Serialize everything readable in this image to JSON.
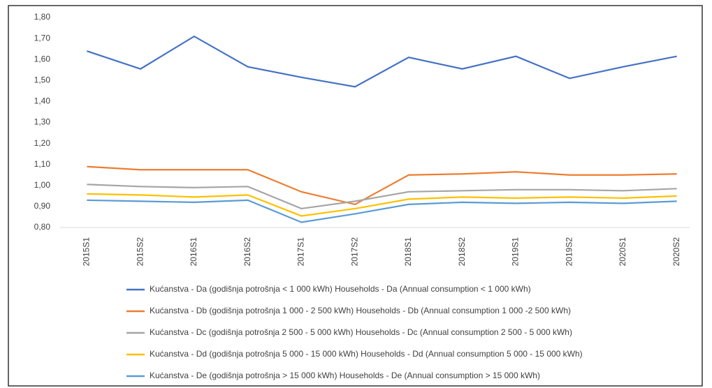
{
  "chart_data": {
    "type": "line",
    "categories": [
      "2015S1",
      "2015S2",
      "2016S1",
      "2016S2",
      "2017S1",
      "2017S2",
      "2018S1",
      "2018S2",
      "2019S1",
      "2019S2",
      "2020S1",
      "2020S2"
    ],
    "series": [
      {
        "name": "Kućanstva - Da (godišnja potrošnja < 1 000 kWh) Households - Da (Annual consumption < 1 000 kWh)",
        "color": "#4472c4",
        "values": [
          1.64,
          1.555,
          1.71,
          1.565,
          1.515,
          1.47,
          1.61,
          1.555,
          1.615,
          1.51,
          1.565,
          1.615
        ]
      },
      {
        "name": "Kućanstva - Db (godišnja potrošnja 1 000 - 2 500 kWh)  Households - Db (Annual consumption 1 000 -2 500 kWh)",
        "color": "#ed7d31",
        "values": [
          1.09,
          1.075,
          1.075,
          1.075,
          0.97,
          0.91,
          1.05,
          1.055,
          1.065,
          1.05,
          1.05,
          1.055
        ]
      },
      {
        "name": "Kućanstva - Dc (godišnja potrošnja 2 500 - 5 000 kWh) Households - Dc (Annual consumption 2 500 - 5 000 kWh)",
        "color": "#a5a5a5",
        "values": [
          1.005,
          0.995,
          0.99,
          0.995,
          0.89,
          0.925,
          0.97,
          0.975,
          0.98,
          0.98,
          0.975,
          0.985
        ]
      },
      {
        "name": "Kućanstva - Dd (godišnja potrošnja 5 000 - 15 000 kWh) Households - Dd (Annual consumption 5 000 - 15 000 kWh)",
        "color": "#ffc000",
        "values": [
          0.96,
          0.955,
          0.945,
          0.955,
          0.855,
          0.89,
          0.935,
          0.945,
          0.94,
          0.945,
          0.94,
          0.95
        ]
      },
      {
        "name": "Kućanstva - De (godišnja potrošnja > 15 000 kWh) Households - De (Annual consumption > 15 000 kWh)",
        "color": "#5b9bd5",
        "values": [
          0.93,
          0.925,
          0.92,
          0.93,
          0.825,
          0.865,
          0.91,
          0.92,
          0.915,
          0.92,
          0.915,
          0.925
        ]
      }
    ],
    "ylim": [
      0.8,
      1.8
    ],
    "yticks": [
      {
        "value": 0.8,
        "label": "0,80"
      },
      {
        "value": 0.9,
        "label": "0,90"
      },
      {
        "value": 1.0,
        "label": "1,00"
      },
      {
        "value": 1.1,
        "label": "1,10"
      },
      {
        "value": 1.2,
        "label": "1,20"
      },
      {
        "value": 1.3,
        "label": "1,30"
      },
      {
        "value": 1.4,
        "label": "1,40"
      },
      {
        "value": 1.5,
        "label": "1,50"
      },
      {
        "value": 1.6,
        "label": "1,60"
      },
      {
        "value": 1.7,
        "label": "1,70"
      },
      {
        "value": 1.8,
        "label": "1,80"
      }
    ],
    "grid": false,
    "legend": "bottom"
  }
}
